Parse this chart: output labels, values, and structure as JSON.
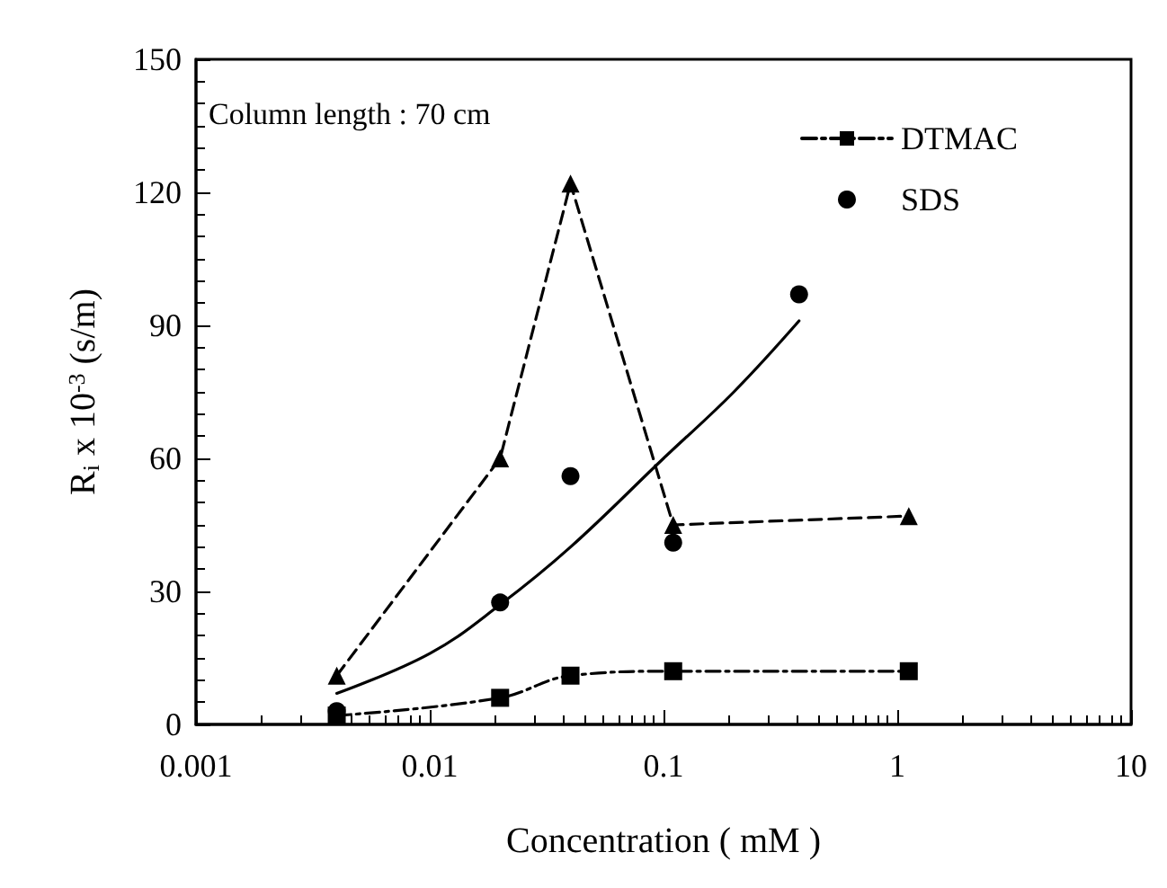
{
  "chart_data": {
    "type": "line",
    "xlabel": "Concentration ( mM )",
    "ylabel": "R$_{i}$ x 10$^{-3}$ (s/m)",
    "log": "x",
    "xlim": [
      0.001,
      10
    ],
    "xticks": [
      0.001,
      0.01,
      0.1,
      1,
      10
    ],
    "ylim": [
      0,
      150
    ],
    "yticks": [
      0,
      30,
      60,
      90,
      120,
      150
    ],
    "grid": false,
    "legend": "top right",
    "annotations": [
      "Column length : 70 cm"
    ],
    "series": [
      {
        "name": "DTMAC",
        "color": "#000000",
        "marker": "square",
        "line_style": "dashdot",
        "x": [
          0.004,
          0.02,
          0.04,
          0.11,
          1.12
        ],
        "values": [
          2,
          6,
          11,
          12,
          12
        ]
      },
      {
        "color": "#000000",
        "marker": "triangle",
        "line_style": "dashed",
        "x": [
          0.004,
          0.02,
          0.04,
          0.11,
          1.12
        ],
        "values": [
          11,
          60,
          122,
          45,
          47
        ]
      },
      {
        "name": "SDS",
        "type": "scatter",
        "color": "#000000",
        "marker": "circle",
        "x": [
          0.004,
          0.02,
          0.04,
          0.11,
          0.38
        ],
        "values": [
          3,
          27.5,
          56,
          41,
          97
        ]
      },
      {
        "color": "#000000",
        "marker": "none",
        "line_style": "solid",
        "x": [
          0.004,
          0.01,
          0.02,
          0.04,
          0.1,
          0.2,
          0.38
        ],
        "values": [
          7,
          16,
          27,
          40,
          60,
          75,
          91
        ]
      }
    ]
  }
}
